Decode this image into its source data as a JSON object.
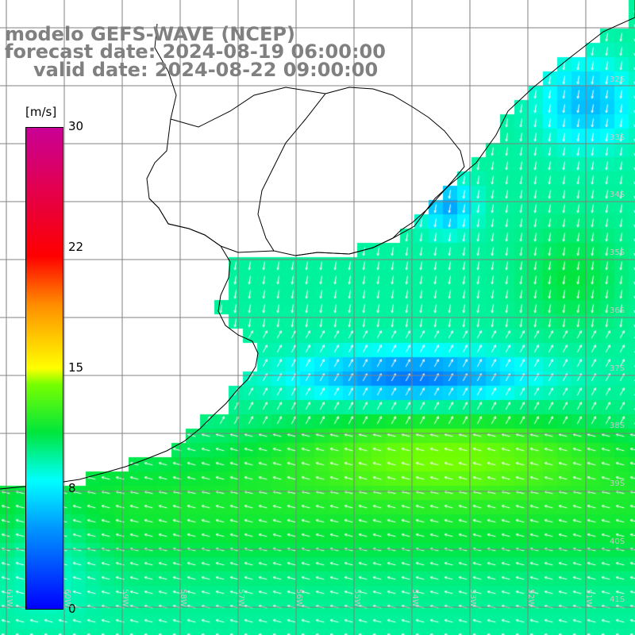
{
  "title": {
    "line1": "modelo GEFS-WAVE (NCEP)",
    "line2": "forecast date: 2024-08-19 06:00:00",
    "line3": "valid date: 2024-08-22 09:00:00"
  },
  "colorbar": {
    "unit": "[m/s]",
    "ticks": [
      "30",
      "22",
      "15",
      "8",
      "0"
    ],
    "tick_values": [
      30,
      22,
      15,
      8,
      0
    ],
    "colors": [
      "#0000ff",
      "#00c8ff",
      "#00ffff",
      "#00ff00",
      "#ffff00",
      "#ff8000",
      "#ff0000",
      "#c80096"
    ]
  },
  "grid": {
    "lat_labels": [
      "32S",
      "33S",
      "34S",
      "35S",
      "36S",
      "37S",
      "38S",
      "39S",
      "40S",
      "41S"
    ],
    "lon_labels": [
      "61W",
      "60W",
      "59W",
      "58W",
      "57W",
      "56W",
      "55W",
      "54W",
      "53W",
      "52W",
      "51W"
    ]
  },
  "map": {
    "land_color": "#ffffff",
    "coast_color": "#000000",
    "grid_color": "#808080"
  }
}
